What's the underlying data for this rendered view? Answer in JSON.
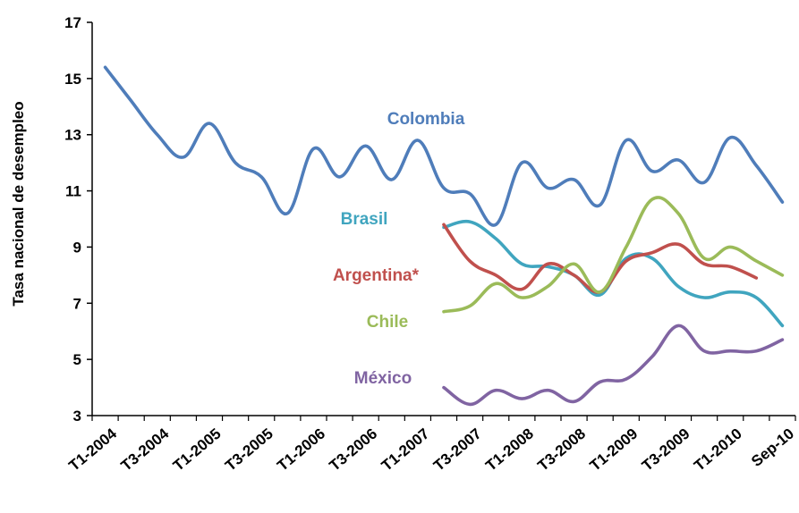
{
  "chart_data": {
    "type": "line",
    "title": "",
    "xlabel": "",
    "ylabel": "Tasa nacional de desempleo",
    "ylim": [
      3,
      17
    ],
    "yticks": [
      "3",
      "5",
      "7",
      "9",
      "11",
      "13",
      "15",
      "17"
    ],
    "x_tick_labels": [
      "T1-2004",
      "T3-2004",
      "T1-2005",
      "T3-2005",
      "T1-2006",
      "T3-2006",
      "T1-2007",
      "T3-2007",
      "T1-2008",
      "T3-2008",
      "T1-2009",
      "T3-2009",
      "T1-2010",
      "Sep-10"
    ],
    "grid": false,
    "legend": "inline labels",
    "series": [
      {
        "name": "Colombia",
        "color": "#4F7DBA",
        "values": [
          15.4,
          14.2,
          13.0,
          12.2,
          13.4,
          12.0,
          11.5,
          10.2,
          12.5,
          11.5,
          12.6,
          11.4,
          12.8,
          11.1,
          10.9,
          9.8,
          12.0,
          11.1,
          11.4,
          10.5,
          12.8,
          11.7,
          12.1,
          11.3,
          12.9,
          11.9,
          10.6
        ]
      },
      {
        "name": "Brasil",
        "color": "#40A5BF",
        "values": [
          null,
          null,
          null,
          null,
          null,
          null,
          null,
          null,
          null,
          null,
          null,
          null,
          null,
          9.7,
          9.9,
          9.3,
          8.4,
          8.3,
          8.0,
          7.3,
          8.6,
          8.6,
          7.6,
          7.2,
          7.4,
          7.2,
          6.2
        ]
      },
      {
        "name": "Argentina*",
        "color": "#C0504D",
        "values": [
          null,
          null,
          null,
          null,
          null,
          null,
          null,
          null,
          null,
          null,
          null,
          null,
          null,
          9.8,
          8.5,
          8.0,
          7.5,
          8.4,
          8.0,
          7.4,
          8.5,
          8.8,
          9.1,
          8.4,
          8.3,
          7.9,
          null
        ]
      },
      {
        "name": "Chile",
        "color": "#9BBB59",
        "values": [
          null,
          null,
          null,
          null,
          null,
          null,
          null,
          null,
          null,
          null,
          null,
          null,
          null,
          6.7,
          6.9,
          7.7,
          7.2,
          7.6,
          8.4,
          7.4,
          9.0,
          10.7,
          10.2,
          8.6,
          9.0,
          8.5,
          8.0
        ]
      },
      {
        "name": "México",
        "color": "#8064A2",
        "values": [
          null,
          null,
          null,
          null,
          null,
          null,
          null,
          null,
          null,
          null,
          null,
          null,
          null,
          4.0,
          3.4,
          3.9,
          3.6,
          3.9,
          3.5,
          4.2,
          4.3,
          5.1,
          6.2,
          5.3,
          5.3,
          5.3,
          5.7
        ]
      }
    ]
  }
}
